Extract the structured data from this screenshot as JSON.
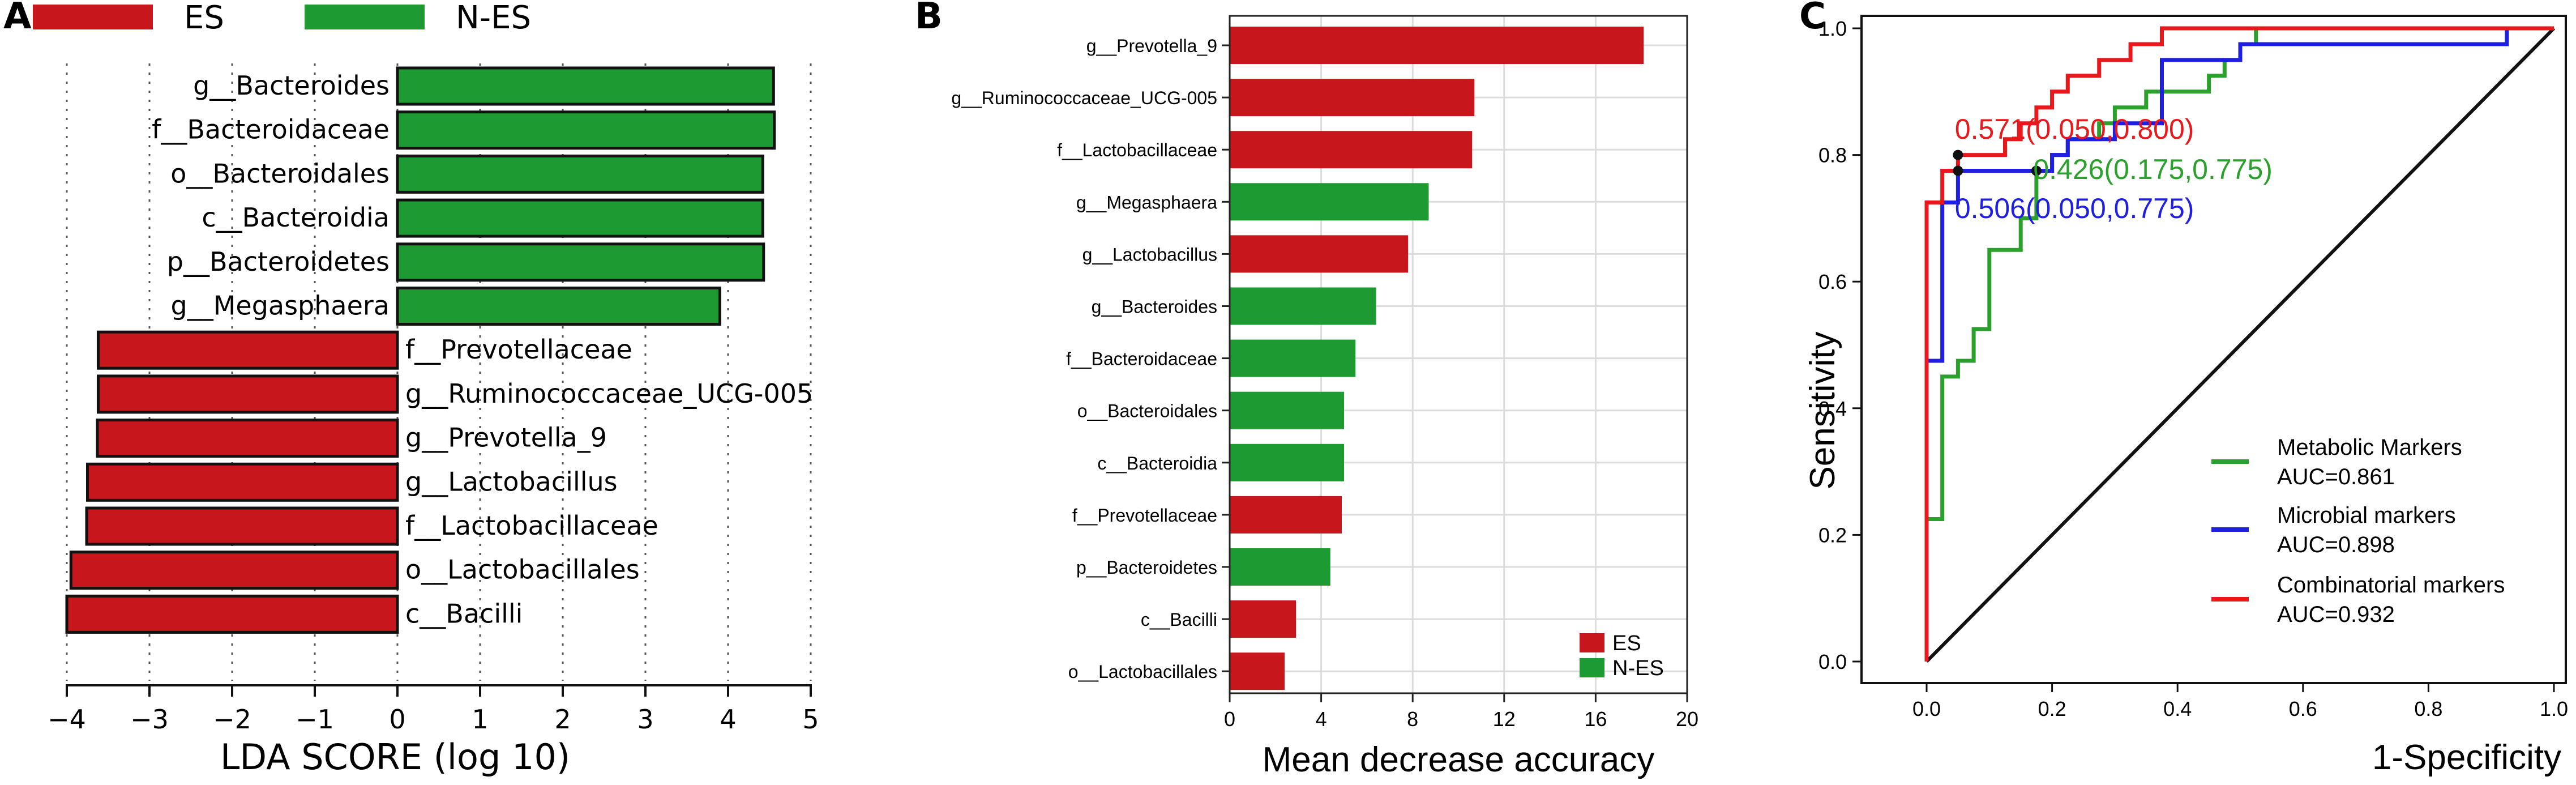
{
  "panels": [
    {
      "label": "A",
      "chart_data": {
        "type": "bar",
        "orientation": "horizontal",
        "title": "",
        "xlabel": "LDA SCORE (log 10)",
        "ylabel": "",
        "xlim": [
          -4,
          5
        ],
        "x_ticks": [
          "−4",
          "−3",
          "−2",
          "−1",
          "0",
          "1",
          "2",
          "3",
          "4",
          "5"
        ],
        "grid": "vertical dotted",
        "legend": [
          {
            "name": "ES",
            "color": "#c8161d"
          },
          {
            "name": "N-ES",
            "color": "#1e9a33"
          }
        ],
        "categories": [
          "g__Bacteroides",
          "f__Bacteroidaceae",
          "o__Bacteroidales",
          "c__Bacteroidia",
          "p__Bacteroidetes",
          "g__Megasphaera",
          "f__Prevotellaceae",
          "g__Ruminococcaceae_UCG-005",
          "g__Prevotella_9",
          "g__Lactobacillus",
          "f__Lactobacillaceae",
          "o__Lactobacillales",
          "c__Bacilli"
        ],
        "values": [
          4.55,
          4.56,
          4.42,
          4.42,
          4.43,
          3.9,
          -3.62,
          -3.62,
          -3.63,
          -3.75,
          -3.76,
          -3.95,
          -4.0
        ],
        "groups": [
          "N-ES",
          "N-ES",
          "N-ES",
          "N-ES",
          "N-ES",
          "N-ES",
          "ES",
          "ES",
          "ES",
          "ES",
          "ES",
          "ES",
          "ES"
        ]
      }
    },
    {
      "label": "B",
      "chart_data": {
        "type": "bar",
        "orientation": "horizontal",
        "title": "",
        "xlabel": "Mean decrease accuracy",
        "ylabel": "",
        "xlim": [
          0,
          20
        ],
        "x_ticks": [
          "0",
          "4",
          "8",
          "12",
          "16",
          "20"
        ],
        "grid": "vertical",
        "legend": [
          {
            "name": "ES",
            "color": "#c8161d"
          },
          {
            "name": "N-ES",
            "color": "#1e9a33"
          }
        ],
        "legend_position": "bottom-right",
        "categories": [
          "g__Prevotella_9",
          "g__Ruminococcaceae_UCG-005",
          "f__Lactobacillaceae",
          "g__Megasphaera",
          "g__Lactobacillus",
          "g__Bacteroides",
          "f__Bacteroidaceae",
          "o__Bacteroidales",
          "c__Bacteroidia",
          "f__Prevotellaceae",
          "p__Bacteroidetes",
          "c__Bacilli",
          "o__Lactobacillales"
        ],
        "values": [
          18.1,
          10.7,
          10.6,
          8.7,
          7.8,
          6.4,
          5.5,
          5.0,
          5.0,
          4.9,
          4.4,
          2.9,
          2.4
        ],
        "groups": [
          "ES",
          "ES",
          "ES",
          "N-ES",
          "ES",
          "N-ES",
          "N-ES",
          "N-ES",
          "N-ES",
          "ES",
          "N-ES",
          "ES",
          "ES"
        ]
      }
    },
    {
      "label": "C",
      "chart_data": {
        "type": "line",
        "title": "",
        "xlabel": "1-Specificity",
        "ylabel": "Sensitivity",
        "xlim": [
          0,
          1
        ],
        "ylim": [
          0,
          1
        ],
        "x_ticks": [
          "0.0",
          "0.2",
          "0.4",
          "0.6",
          "0.8",
          "1.0"
        ],
        "y_ticks": [
          "0.0",
          "0.2",
          "0.4",
          "0.6",
          "0.8",
          "1.0"
        ],
        "legend_position": "bottom-right",
        "diagonal": true,
        "series": [
          {
            "name": "Metabolic Markers",
            "auc_label": "AUC=0.861",
            "color": "#2ca02c",
            "annotation": "0.426(0.175,0.775)",
            "point": [
              0.175,
              0.775
            ],
            "points": [
              [
                0,
                0
              ],
              [
                0,
                0.225
              ],
              [
                0.025,
                0.225
              ],
              [
                0.025,
                0.45
              ],
              [
                0.05,
                0.45
              ],
              [
                0.05,
                0.475
              ],
              [
                0.075,
                0.475
              ],
              [
                0.075,
                0.525
              ],
              [
                0.1,
                0.525
              ],
              [
                0.1,
                0.575
              ],
              [
                0.1,
                0.65
              ],
              [
                0.15,
                0.65
              ],
              [
                0.15,
                0.7
              ],
              [
                0.175,
                0.7
              ],
              [
                0.175,
                0.775
              ],
              [
                0.2,
                0.775
              ],
              [
                0.2,
                0.8
              ],
              [
                0.225,
                0.8
              ],
              [
                0.225,
                0.825
              ],
              [
                0.275,
                0.825
              ],
              [
                0.275,
                0.85
              ],
              [
                0.3,
                0.85
              ],
              [
                0.3,
                0.875
              ],
              [
                0.35,
                0.875
              ],
              [
                0.35,
                0.9
              ],
              [
                0.45,
                0.9
              ],
              [
                0.45,
                0.925
              ],
              [
                0.475,
                0.925
              ],
              [
                0.475,
                0.95
              ],
              [
                0.5,
                0.95
              ],
              [
                0.5,
                0.975
              ],
              [
                0.525,
                0.975
              ],
              [
                0.525,
                1.0
              ],
              [
                1,
                1
              ]
            ]
          },
          {
            "name": "Microbial markers",
            "auc_label": "AUC=0.898",
            "color": "#1f1fe0",
            "annotation": "0.506(0.050,0.775)",
            "point": [
              0.05,
              0.775
            ],
            "points": [
              [
                0,
                0
              ],
              [
                0,
                0.475
              ],
              [
                0.025,
                0.475
              ],
              [
                0.025,
                0.725
              ],
              [
                0.05,
                0.725
              ],
              [
                0.05,
                0.775
              ],
              [
                0.2,
                0.775
              ],
              [
                0.2,
                0.8
              ],
              [
                0.225,
                0.8
              ],
              [
                0.225,
                0.825
              ],
              [
                0.3,
                0.825
              ],
              [
                0.3,
                0.85
              ],
              [
                0.375,
                0.85
              ],
              [
                0.375,
                0.95
              ],
              [
                0.5,
                0.95
              ],
              [
                0.5,
                0.975
              ],
              [
                0.925,
                0.975
              ],
              [
                0.925,
                1.0
              ],
              [
                1,
                1
              ]
            ]
          },
          {
            "name": "Combinatorial markers",
            "auc_label": "AUC=0.932",
            "color": "#e8191c",
            "annotation": "0.571(0.050,0.800)",
            "point": [
              0.05,
              0.8
            ],
            "points": [
              [
                0,
                0
              ],
              [
                0,
                0.725
              ],
              [
                0.025,
                0.725
              ],
              [
                0.025,
                0.775
              ],
              [
                0.05,
                0.775
              ],
              [
                0.05,
                0.8
              ],
              [
                0.125,
                0.8
              ],
              [
                0.125,
                0.825
              ],
              [
                0.15,
                0.825
              ],
              [
                0.15,
                0.85
              ],
              [
                0.175,
                0.85
              ],
              [
                0.175,
                0.875
              ],
              [
                0.2,
                0.875
              ],
              [
                0.2,
                0.9
              ],
              [
                0.225,
                0.9
              ],
              [
                0.225,
                0.925
              ],
              [
                0.275,
                0.925
              ],
              [
                0.275,
                0.95
              ],
              [
                0.325,
                0.95
              ],
              [
                0.325,
                0.975
              ],
              [
                0.375,
                0.975
              ],
              [
                0.375,
                1.0
              ],
              [
                1,
                1
              ]
            ]
          }
        ]
      }
    }
  ]
}
